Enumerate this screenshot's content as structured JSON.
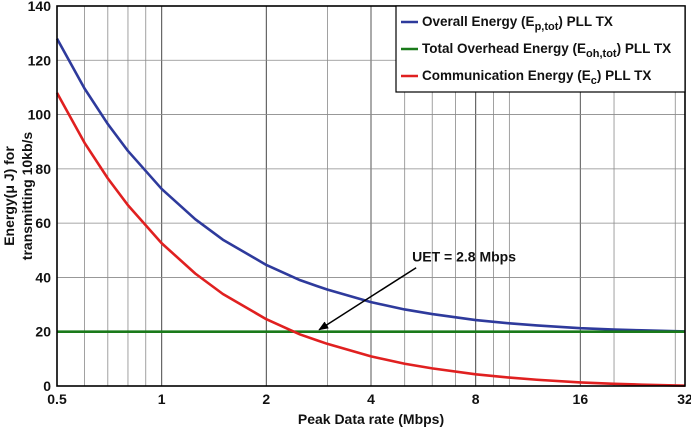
{
  "chart_data": {
    "type": "line",
    "xscale": "log2",
    "xlabel": "Peak Data rate (Mbps)",
    "ylabel_line1": "Energy(μ J) for",
    "ylabel_line2": "transmitting 10kb/s",
    "xlim": [
      0.5,
      32
    ],
    "ylim": [
      0,
      140
    ],
    "x_ticks": [
      0.5,
      1,
      2,
      4,
      8,
      16,
      32
    ],
    "x_tick_labels": [
      "0.5",
      "1",
      "2",
      "4",
      "8",
      "16",
      "32"
    ],
    "y_ticks": [
      0,
      20,
      40,
      60,
      80,
      100,
      120,
      140
    ],
    "y_tick_labels": [
      "0",
      "20",
      "40",
      "60",
      "80",
      "100",
      "120",
      "140"
    ],
    "grid": true,
    "legend_position": "top-right",
    "series": [
      {
        "name_prefix": "Overall Energy (E",
        "name_sub": "p,tot",
        "name_suffix": ") PLL TX",
        "color": "#2e3a9c",
        "x": [
          0.5,
          0.6,
          0.7,
          0.8,
          1,
          1.25,
          1.5,
          2,
          2.5,
          2.8,
          3,
          4,
          5,
          6,
          8,
          10,
          12,
          16,
          20,
          24,
          32
        ],
        "y": [
          128,
          109.6,
          96.5,
          86.6,
          72.6,
          61.4,
          53.9,
          44.6,
          39.0,
          36.8,
          35.5,
          30.9,
          28.2,
          26.5,
          24.3,
          23.1,
          22.3,
          21.3,
          20.8,
          20.5,
          20.1
        ]
      },
      {
        "name_prefix": "Total Overhead Energy (E",
        "name_sub": "oh,tot",
        "name_suffix": ") PLL TX",
        "color": "#1a7a1a",
        "x": [
          0.5,
          32
        ],
        "y": [
          20,
          20
        ]
      },
      {
        "name_prefix": "Communication Energy (E",
        "name_sub": "c",
        "name_suffix": ") PLL TX",
        "color": "#e02020",
        "x": [
          0.5,
          0.6,
          0.7,
          0.8,
          1,
          1.25,
          1.5,
          2,
          2.5,
          2.8,
          3,
          4,
          5,
          6,
          8,
          10,
          12,
          16,
          20,
          24,
          32
        ],
        "y": [
          108,
          89.6,
          76.5,
          66.6,
          52.6,
          41.4,
          33.9,
          24.6,
          19.0,
          16.8,
          15.5,
          10.9,
          8.2,
          6.5,
          4.3,
          3.1,
          2.3,
          1.3,
          0.8,
          0.5,
          0.1
        ]
      }
    ],
    "annotation": {
      "text": "UET = 2.8 Mbps",
      "x": 2.8,
      "y": 20
    }
  }
}
